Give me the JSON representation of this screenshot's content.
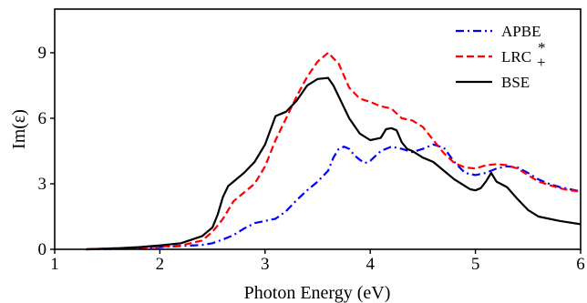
{
  "chart_data": {
    "type": "line",
    "xlabel": "Photon Energy (eV)",
    "ylabel": "Im(ε)",
    "xlim": [
      1,
      6
    ],
    "ylim": [
      0,
      11
    ],
    "xticks": [
      "1",
      "2",
      "3",
      "4",
      "5",
      "6"
    ],
    "yticks": [
      "0",
      "3",
      "6",
      "9"
    ],
    "grid": false,
    "legend_position": "top-right",
    "series": [
      {
        "name": "APBE",
        "color": "#0000ff",
        "dash": "dash-dot",
        "x": [
          1.3,
          1.6,
          1.8,
          2.0,
          2.2,
          2.4,
          2.5,
          2.6,
          2.7,
          2.8,
          2.9,
          3.0,
          3.1,
          3.2,
          3.3,
          3.4,
          3.5,
          3.6,
          3.65,
          3.7,
          3.75,
          3.8,
          3.85,
          3.9,
          3.95,
          4.0,
          4.1,
          4.2,
          4.3,
          4.4,
          4.5,
          4.6,
          4.7,
          4.8,
          4.9,
          5.0,
          5.1,
          5.2,
          5.3,
          5.4,
          5.5,
          5.6,
          5.7,
          5.8,
          5.9,
          6.0
        ],
        "y": [
          0.0,
          0.02,
          0.05,
          0.1,
          0.15,
          0.2,
          0.28,
          0.45,
          0.65,
          0.95,
          1.2,
          1.3,
          1.4,
          1.75,
          2.25,
          2.7,
          3.1,
          3.6,
          4.2,
          4.6,
          4.7,
          4.6,
          4.3,
          4.1,
          3.95,
          4.05,
          4.5,
          4.7,
          4.6,
          4.45,
          4.6,
          4.8,
          4.65,
          4.0,
          3.5,
          3.4,
          3.5,
          3.7,
          3.8,
          3.75,
          3.5,
          3.2,
          3.0,
          2.85,
          2.75,
          2.65
        ]
      },
      {
        "name": "LRC",
        "name_super": "*",
        "name_sub": "+",
        "color": "#ff0000",
        "dash": "dashed",
        "x": [
          1.3,
          1.6,
          1.8,
          2.0,
          2.2,
          2.4,
          2.5,
          2.6,
          2.7,
          2.8,
          2.9,
          3.0,
          3.1,
          3.2,
          3.3,
          3.4,
          3.5,
          3.6,
          3.7,
          3.8,
          3.9,
          4.0,
          4.1,
          4.2,
          4.3,
          4.4,
          4.5,
          4.6,
          4.7,
          4.8,
          4.9,
          5.0,
          5.1,
          5.2,
          5.3,
          5.4,
          5.5,
          5.6,
          5.7,
          5.8,
          5.9,
          6.0
        ],
        "y": [
          0.0,
          0.05,
          0.08,
          0.12,
          0.18,
          0.4,
          0.8,
          1.4,
          2.2,
          2.6,
          3.0,
          3.8,
          5.0,
          6.0,
          7.0,
          7.9,
          8.6,
          9.0,
          8.5,
          7.4,
          6.9,
          6.75,
          6.55,
          6.45,
          6.0,
          5.9,
          5.6,
          5.0,
          4.4,
          3.95,
          3.75,
          3.7,
          3.85,
          3.9,
          3.85,
          3.7,
          3.4,
          3.1,
          2.95,
          2.8,
          2.7,
          2.65
        ]
      },
      {
        "name": "BSE",
        "color": "#000000",
        "dash": "solid",
        "x": [
          1.3,
          1.6,
          1.8,
          2.0,
          2.2,
          2.4,
          2.5,
          2.55,
          2.6,
          2.65,
          2.7,
          2.75,
          2.8,
          2.9,
          3.0,
          3.1,
          3.15,
          3.2,
          3.3,
          3.4,
          3.5,
          3.6,
          3.65,
          3.7,
          3.8,
          3.9,
          4.0,
          4.1,
          4.15,
          4.2,
          4.25,
          4.3,
          4.35,
          4.4,
          4.5,
          4.6,
          4.7,
          4.8,
          4.9,
          4.95,
          5.0,
          5.05,
          5.1,
          5.15,
          5.2,
          5.3,
          5.4,
          5.5,
          5.6,
          5.8,
          6.0
        ],
        "y": [
          0.0,
          0.05,
          0.1,
          0.18,
          0.28,
          0.6,
          1.0,
          1.6,
          2.4,
          2.9,
          3.1,
          3.3,
          3.5,
          4.0,
          4.8,
          6.1,
          6.2,
          6.3,
          6.8,
          7.5,
          7.8,
          7.85,
          7.5,
          7.0,
          6.0,
          5.3,
          5.0,
          5.1,
          5.5,
          5.55,
          5.45,
          4.9,
          4.6,
          4.5,
          4.2,
          4.0,
          3.6,
          3.2,
          2.9,
          2.75,
          2.7,
          2.8,
          3.1,
          3.5,
          3.1,
          2.85,
          2.3,
          1.8,
          1.5,
          1.3,
          1.15
        ]
      }
    ]
  }
}
